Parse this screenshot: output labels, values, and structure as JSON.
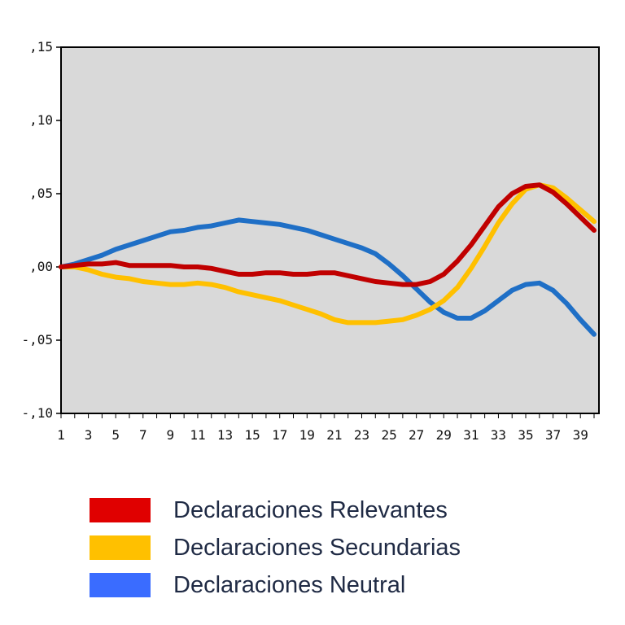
{
  "chart_data": {
    "type": "line",
    "x": [
      1,
      2,
      3,
      4,
      5,
      6,
      7,
      8,
      9,
      10,
      11,
      12,
      13,
      14,
      15,
      16,
      17,
      18,
      19,
      20,
      21,
      22,
      23,
      24,
      25,
      26,
      27,
      28,
      29,
      30,
      31,
      32,
      33,
      34,
      35,
      36,
      37,
      38,
      39,
      40
    ],
    "x_tick_labels": [
      "1",
      "3",
      "5",
      "7",
      "9",
      "11",
      "13",
      "15",
      "17",
      "19",
      "21",
      "23",
      "25",
      "27",
      "29",
      "31",
      "33",
      "35",
      "37",
      "39"
    ],
    "y_tick_labels": [
      ",15",
      ",10",
      ",05",
      ",00",
      "-,05",
      "-,10"
    ],
    "ylim": [
      -0.1,
      0.15
    ],
    "xlim": [
      1,
      40
    ],
    "grid": false,
    "background": "#d9d9d9",
    "legend_position": "bottom",
    "series": [
      {
        "name": "Declaraciones Relevantes",
        "color": "#c00000",
        "values": [
          0.0,
          0.001,
          0.002,
          0.002,
          0.003,
          0.001,
          0.001,
          0.001,
          0.001,
          0.0,
          0.0,
          -0.001,
          -0.003,
          -0.005,
          -0.005,
          -0.004,
          -0.004,
          -0.005,
          -0.005,
          -0.004,
          -0.004,
          -0.006,
          -0.008,
          -0.01,
          -0.011,
          -0.012,
          -0.012,
          -0.01,
          -0.005,
          0.004,
          0.015,
          0.028,
          0.041,
          0.05,
          0.055,
          0.056,
          0.051,
          0.043,
          0.034,
          0.025
        ]
      },
      {
        "name": "Declaraciones Secundarias",
        "color": "#ffc000",
        "values": [
          0.0,
          0.0,
          -0.002,
          -0.005,
          -0.007,
          -0.008,
          -0.01,
          -0.011,
          -0.012,
          -0.012,
          -0.011,
          -0.012,
          -0.014,
          -0.017,
          -0.019,
          -0.021,
          -0.023,
          -0.026,
          -0.029,
          -0.032,
          -0.036,
          -0.038,
          -0.038,
          -0.038,
          -0.037,
          -0.036,
          -0.033,
          -0.029,
          -0.023,
          -0.014,
          -0.001,
          0.014,
          0.03,
          0.043,
          0.053,
          0.056,
          0.054,
          0.047,
          0.039,
          0.031
        ]
      },
      {
        "name": "Declaraciones Neutral",
        "color": "#1f6fc6",
        "values": [
          0.0,
          0.002,
          0.005,
          0.008,
          0.012,
          0.015,
          0.018,
          0.021,
          0.024,
          0.025,
          0.027,
          0.028,
          0.03,
          0.032,
          0.031,
          0.03,
          0.029,
          0.027,
          0.025,
          0.022,
          0.019,
          0.016,
          0.013,
          0.009,
          0.002,
          -0.006,
          -0.015,
          -0.024,
          -0.031,
          -0.035,
          -0.035,
          -0.03,
          -0.023,
          -0.016,
          -0.012,
          -0.011,
          -0.016,
          -0.025,
          -0.036,
          -0.046
        ]
      }
    ]
  },
  "legend": {
    "items": [
      {
        "label": "Declaraciones Relevantes",
        "color": "#e00000"
      },
      {
        "label": "Declaraciones Secundarias",
        "color": "#ffc000"
      },
      {
        "label": "Declaraciones Neutral",
        "color": "#3a6cff"
      }
    ]
  }
}
